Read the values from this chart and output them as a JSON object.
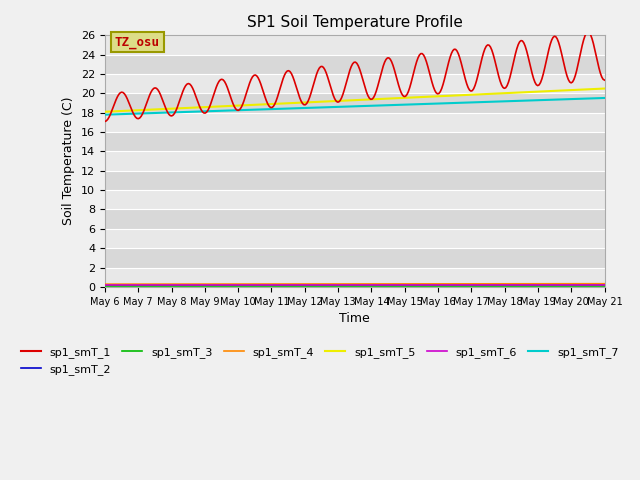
{
  "title": "SP1 Soil Temperature Profile",
  "xlabel": "Time",
  "ylabel": "Soil Temperature (C)",
  "ylim": [
    0,
    26
  ],
  "yticks": [
    0,
    2,
    4,
    6,
    8,
    10,
    12,
    14,
    16,
    18,
    20,
    22,
    24,
    26
  ],
  "xtick_labels": [
    "May 6",
    "May 7",
    "May 8",
    "May 9",
    "May 10",
    "May 11",
    "May 12",
    "May 13",
    "May 14",
    "May 15",
    "May 16",
    "May 17",
    "May 18",
    "May 19",
    "May 20",
    "May 21"
  ],
  "plot_bg_light": "#e8e8e8",
  "plot_bg_dark": "#d8d8d8",
  "fig_bg": "#f0f0f0",
  "grid_color": "#ffffff",
  "series": {
    "sp1_smT_1": {
      "color": "#dd0000",
      "lw": 1.2
    },
    "sp1_smT_2": {
      "color": "#0000cc",
      "lw": 1.2
    },
    "sp1_smT_3": {
      "color": "#00bb00",
      "lw": 1.2
    },
    "sp1_smT_4": {
      "color": "#ff8800",
      "lw": 1.2
    },
    "sp1_smT_5": {
      "color": "#eeee00",
      "lw": 1.5
    },
    "sp1_smT_6": {
      "color": "#cc00cc",
      "lw": 1.2
    },
    "sp1_smT_7": {
      "color": "#00cccc",
      "lw": 1.5
    }
  },
  "annotation_text": "TZ_osu",
  "annotation_box_facecolor": "#dddd88",
  "annotation_box_edgecolor": "#999900",
  "annotation_text_color": "#bb0000"
}
